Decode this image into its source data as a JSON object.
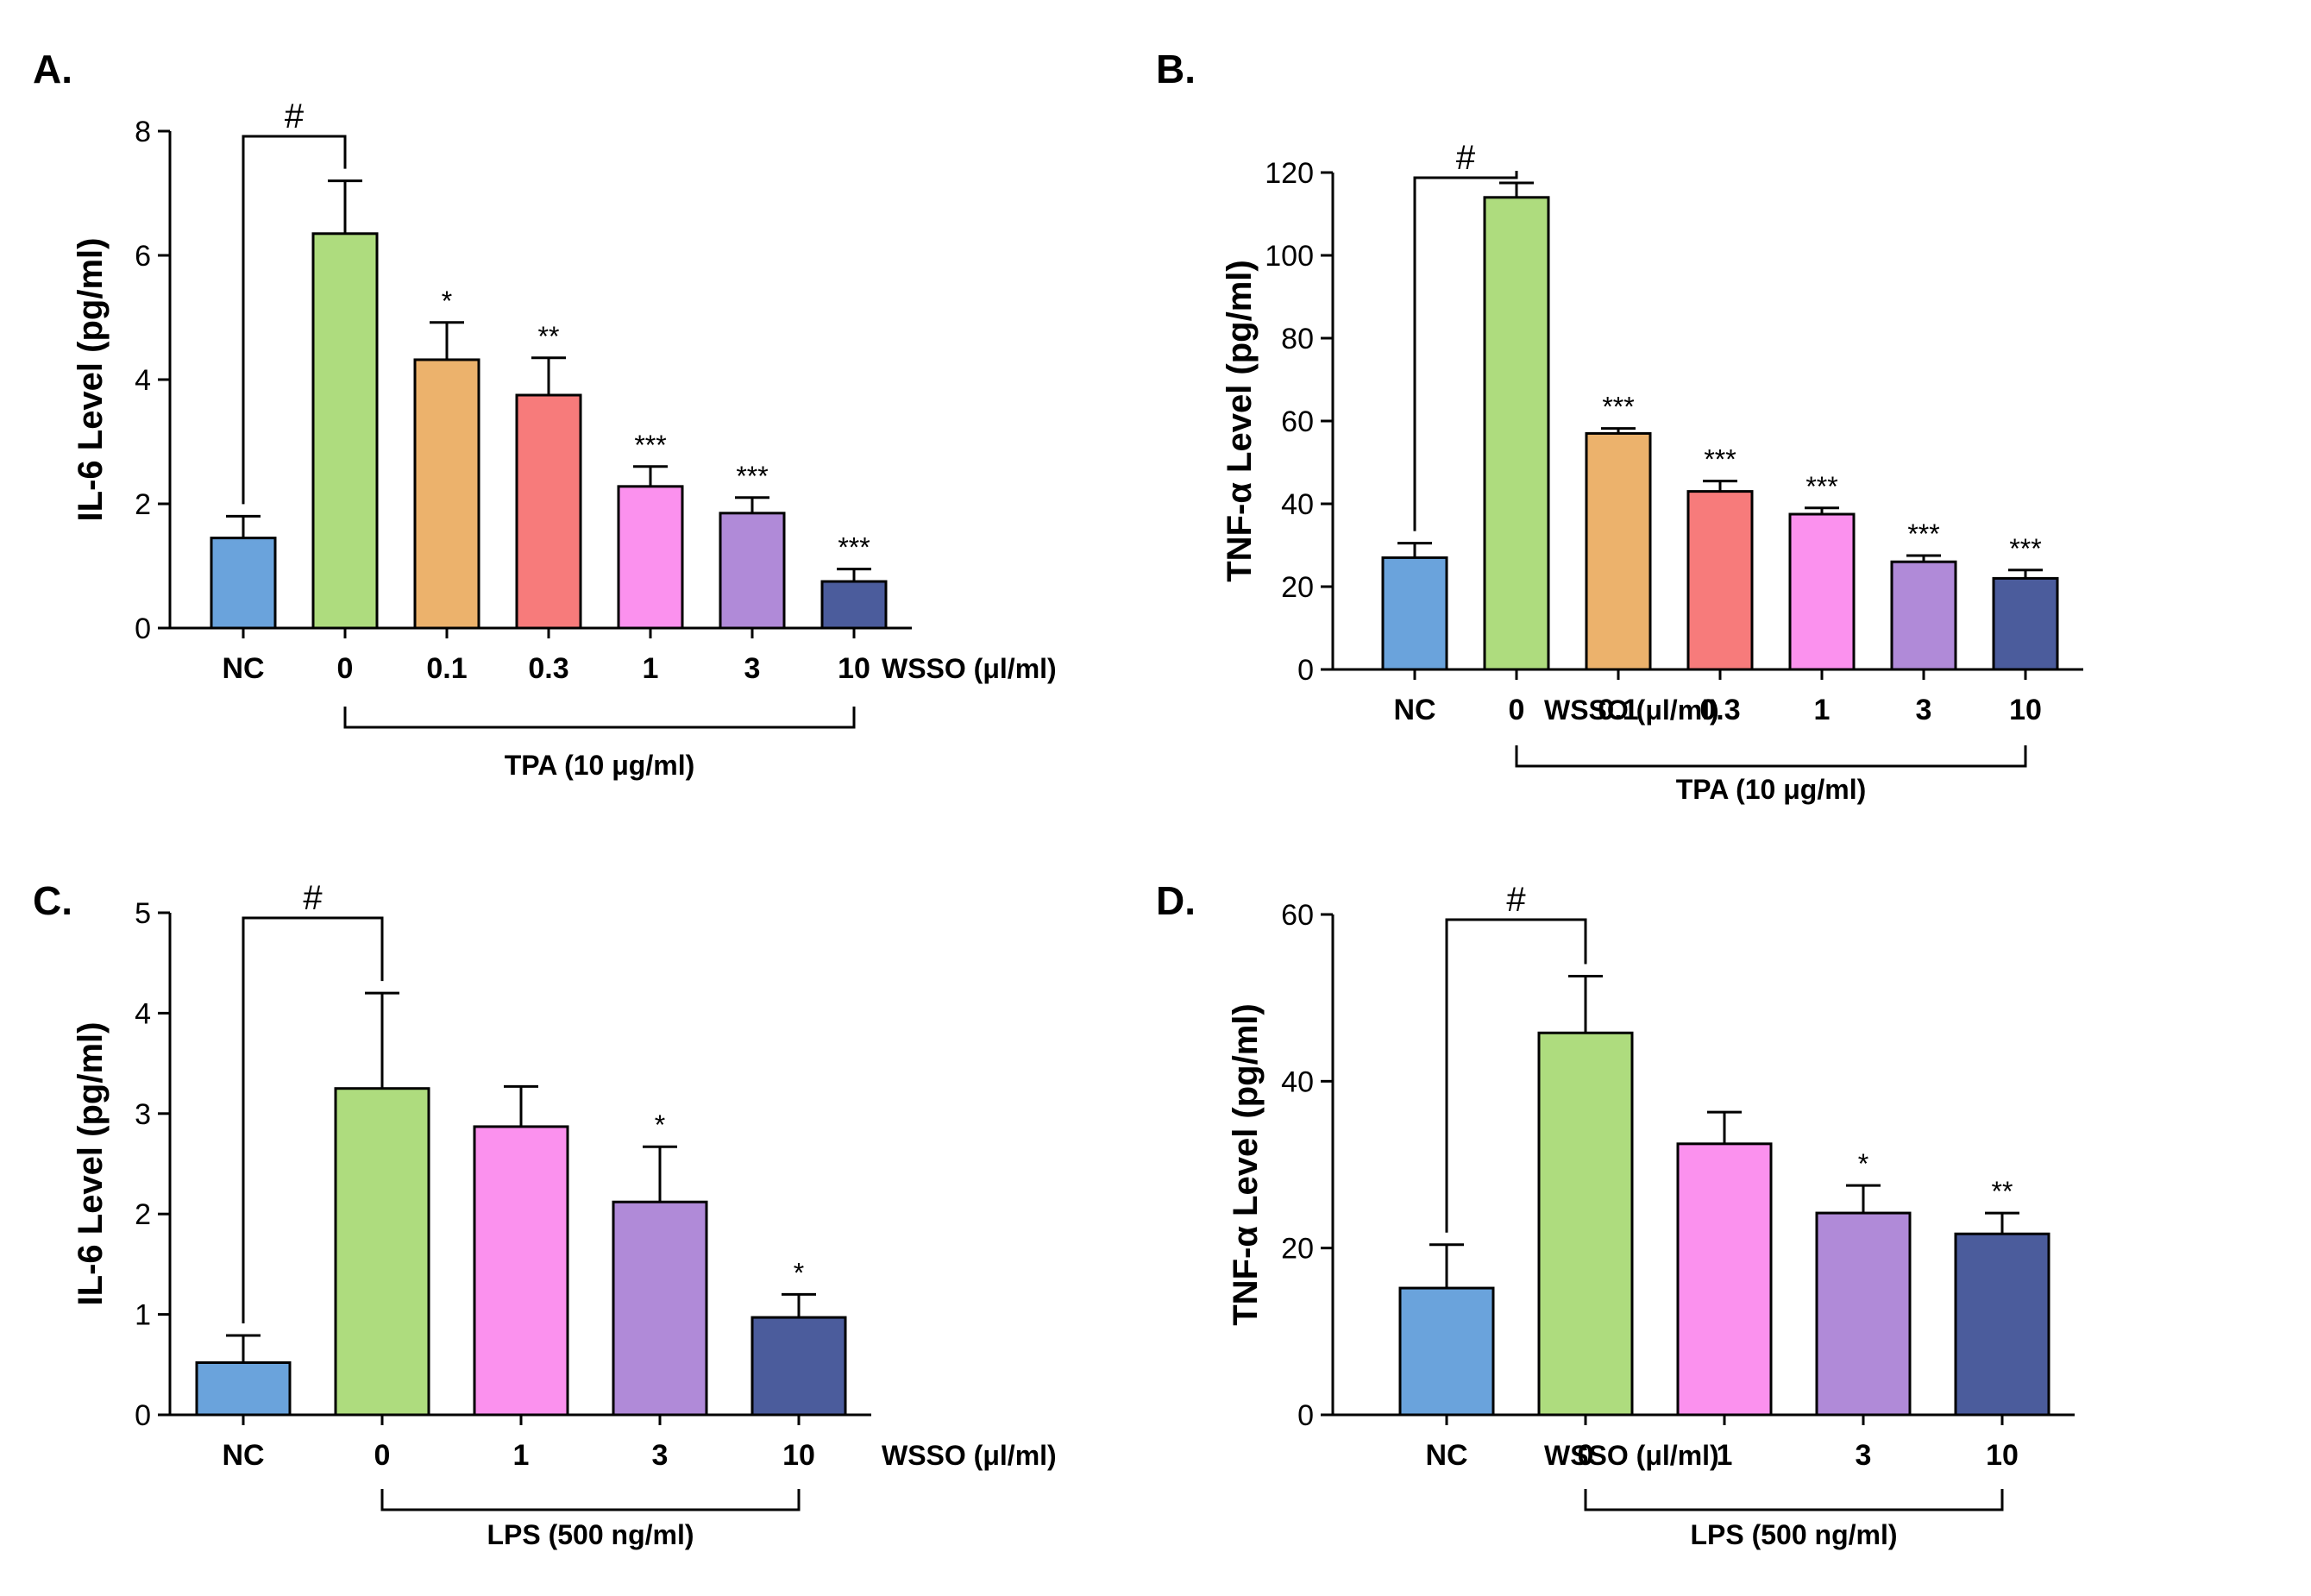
{
  "chart_data": [
    {
      "id": "A",
      "type": "bar",
      "panel_label": "A.",
      "ylabel": "IL-6 Level (pg/ml)",
      "ylim": [
        0,
        8
      ],
      "yticks": [
        "0",
        "2",
        "4",
        "6",
        "8"
      ],
      "ytick_values": [
        0,
        2,
        4,
        6,
        8
      ],
      "categories": [
        "NC",
        "0",
        "0.1",
        "0.3",
        "1",
        "3",
        "10"
      ],
      "x_unit_label": "WSSO (μl/ml)",
      "values": [
        1.45,
        6.35,
        4.32,
        3.75,
        2.28,
        1.85,
        0.75
      ],
      "errors": [
        0.35,
        0.85,
        0.6,
        0.6,
        0.32,
        0.25,
        0.2
      ],
      "colors": [
        "#6aa3dc",
        "#aedc7e",
        "#ecb26c",
        "#f77b7b",
        "#fb91ee",
        "#b08ad8",
        "#4b5c9c"
      ],
      "annotations": [
        "",
        "",
        "*",
        "**",
        "***",
        "***",
        "***"
      ],
      "hash_label": "#",
      "treatment_label": "TPA (10 μg/ml)"
    },
    {
      "id": "B",
      "type": "bar",
      "panel_label": "B.",
      "ylabel": "TNF-α Level (pg/ml)",
      "ylim": [
        0,
        120
      ],
      "yticks": [
        "0",
        "20",
        "40",
        "60",
        "80",
        "100",
        "120"
      ],
      "ytick_values": [
        0,
        20,
        40,
        60,
        80,
        100,
        120
      ],
      "categories": [
        "NC",
        "0",
        "0.1",
        "0.3",
        "1",
        "3",
        "10"
      ],
      "x_unit_label": "WSSO (μl/ml)",
      "values": [
        27,
        114,
        57,
        43,
        37.5,
        26,
        22
      ],
      "errors": [
        3.5,
        3.5,
        1.2,
        2.5,
        1.5,
        1.5,
        2
      ],
      "colors": [
        "#6aa3dc",
        "#aedc7e",
        "#ecb26c",
        "#f77b7b",
        "#fb91ee",
        "#b08ad8",
        "#4b5c9c"
      ],
      "annotations": [
        "",
        "",
        "***",
        "***",
        "***",
        "***",
        "***"
      ],
      "hash_label": "#",
      "treatment_label": "TPA (10 μg/ml)"
    },
    {
      "id": "C",
      "type": "bar",
      "panel_label": "C.",
      "ylabel": "IL-6 Level (pg/ml)",
      "ylim": [
        0,
        5
      ],
      "yticks": [
        "0",
        "1",
        "2",
        "3",
        "4",
        "5"
      ],
      "ytick_values": [
        0,
        1,
        2,
        3,
        4,
        5
      ],
      "categories": [
        "NC",
        "0",
        "1",
        "3",
        "10"
      ],
      "x_unit_label": "WSSO (μl/ml)",
      "values": [
        0.52,
        3.25,
        2.87,
        2.12,
        0.97
      ],
      "errors": [
        0.27,
        0.95,
        0.4,
        0.55,
        0.23
      ],
      "colors": [
        "#6aa3dc",
        "#aedc7e",
        "#fb91ee",
        "#b08ad8",
        "#4b5c9c"
      ],
      "annotations": [
        "",
        "",
        "",
        "*",
        "*"
      ],
      "hash_label": "#",
      "treatment_label": "LPS (500 ng/ml)"
    },
    {
      "id": "D",
      "type": "bar",
      "panel_label": "D.",
      "ylabel": "TNF-α Level (pg/ml)",
      "ylim": [
        0,
        60
      ],
      "yticks": [
        "0",
        "20",
        "40",
        "60"
      ],
      "ytick_values": [
        0,
        20,
        40,
        60
      ],
      "categories": [
        "NC",
        "0",
        "1",
        "3",
        "10"
      ],
      "x_unit_label": "WSSO (μl/ml)",
      "values": [
        15.2,
        45.8,
        32.5,
        24.2,
        21.7
      ],
      "errors": [
        5.2,
        6.8,
        3.8,
        3.3,
        2.5
      ],
      "colors": [
        "#6aa3dc",
        "#aedc7e",
        "#fb91ee",
        "#b08ad8",
        "#4b5c9c"
      ],
      "annotations": [
        "",
        "",
        "",
        "*",
        "**"
      ],
      "hash_label": "#",
      "treatment_label": "LPS (500 ng/ml)"
    }
  ]
}
